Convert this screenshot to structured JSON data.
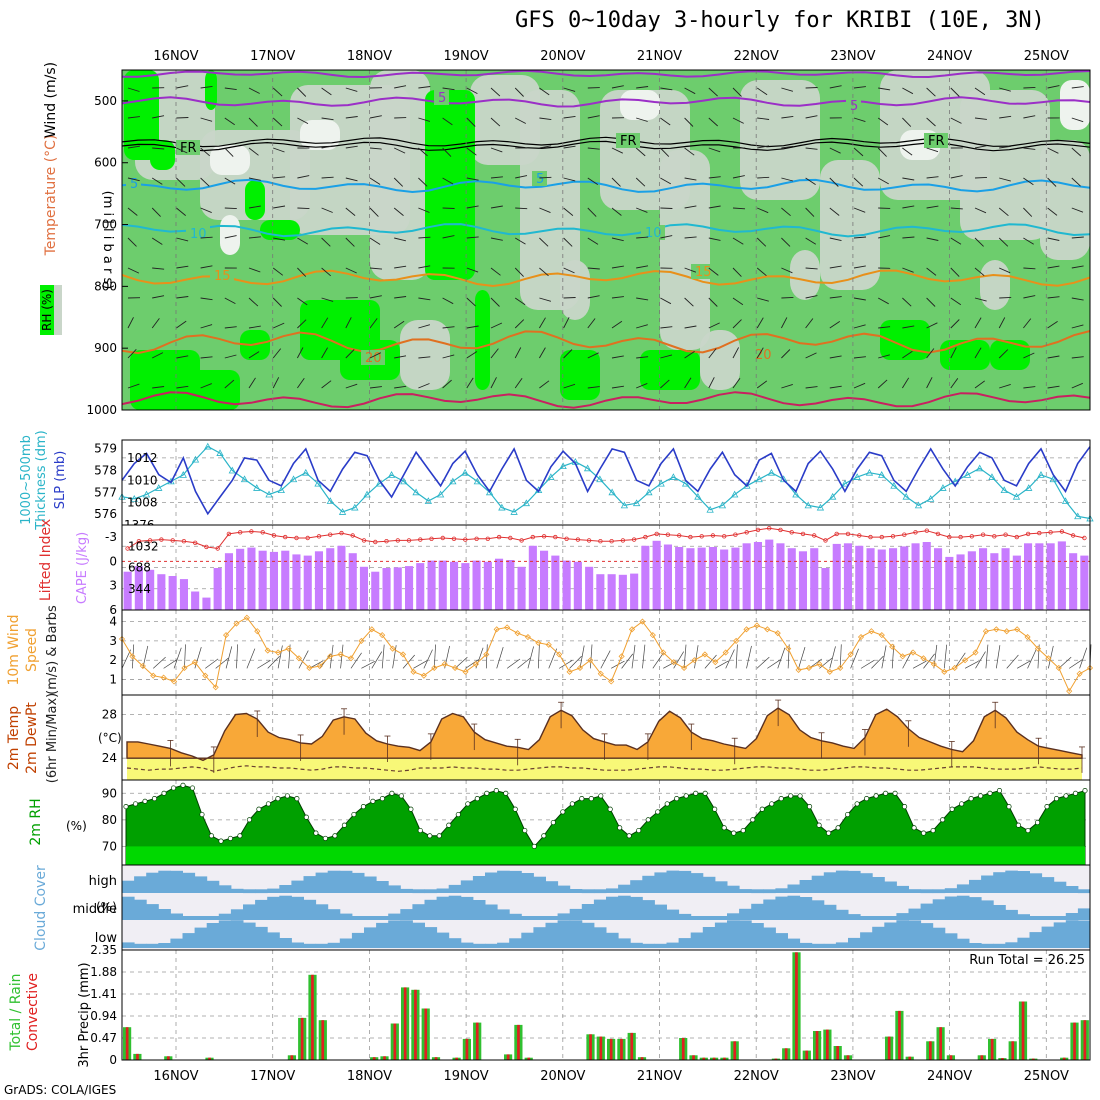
{
  "title": "GFS 0~10day 3-hourly for KRIBI (10E, 3N)",
  "credit": "GrADS: COLA/IGES",
  "dates": [
    "16NOV",
    "17NOV",
    "18NOV",
    "19NOV",
    "20NOV",
    "21NOV",
    "22NOV",
    "23NOV",
    "24NOV",
    "25NOV"
  ],
  "colors": {
    "rh_light": "#c9d6c9",
    "rh_green": "#6dcd6d",
    "rh_bright": "#00f000",
    "temp": "#9b2fc7",
    "freeze": "#000000",
    "cyan": "#1aa0e6",
    "orange": "#e8901a",
    "cape": "#c77cff",
    "li": "#e03030",
    "slp": "#2a3cc8",
    "thick": "#2ab4c8",
    "wind10": "#f0a030",
    "temp2m": "#f8a838",
    "dew": "#f8f878",
    "rh2m": "#00a000",
    "cloud": "#6aaad8",
    "precip_total": "#30c030",
    "precip_conv": "#e02020"
  },
  "chart_data": [
    {
      "type": "heatmap",
      "panel": "upper-air",
      "ylabel": "(millibars)",
      "yticks": [
        500,
        600,
        700,
        800,
        900,
        1000
      ],
      "ylim": [
        1000,
        450
      ],
      "legend_labels": {
        "rh": "RH (%)",
        "temp": "Temperature (°C)",
        "wind": "Wind (m/s)"
      },
      "contour_labels": [
        "5",
        "5",
        "FR",
        "FR",
        "FR",
        "5",
        "5",
        "10",
        "10",
        "15",
        "15",
        "20",
        "20"
      ]
    },
    {
      "type": "line",
      "panel": "slp-thickness",
      "ylabel_left": "1000~500mb Thickness (dm)",
      "ylabel_right": "SLP (mb)",
      "yticks_left": [
        "576",
        "577",
        "578",
        "579"
      ],
      "yticks_right": [
        "1008",
        "1010",
        "1012"
      ],
      "series": [
        {
          "values": [
            1010,
            1011.5,
            1012.4,
            1010.5,
            1009.8,
            1012,
            1009,
            1007,
            1008.5,
            1010,
            1012,
            1011.8,
            1010,
            1009.5,
            1011.5,
            1012.8,
            1010,
            1009,
            1011,
            1012.5,
            1012.2,
            1010,
            1008.5,
            1010.5,
            1012.5,
            1011,
            1009.5,
            1011.5,
            1012.6,
            1010.5,
            1009,
            1011,
            1012.8,
            1010,
            1009,
            1011.2,
            1012.6,
            1011.5,
            1009,
            1011,
            1012.8,
            1012.5,
            1010,
            1009.5,
            1011.5,
            1012.8,
            1010,
            1009,
            1011,
            1012.5,
            1010.5,
            1009.5,
            1011.8,
            1012.4,
            1010,
            1009,
            1011.5,
            1012.6,
            1011,
            1009,
            1011,
            1012.5,
            1012.2,
            1010,
            1009,
            1011,
            1012.8,
            1011,
            1009.5,
            1011.2,
            1012.5,
            1012,
            1010,
            1009.5,
            1011.5,
            1012.8,
            1010.5,
            1009,
            1011.5,
            1013
          ]
        },
        {
          "values": [
            576.8,
            576.7,
            576.9,
            577.2,
            577.5,
            577.8,
            578.5,
            579.1,
            578.8,
            578,
            577.6,
            577.2,
            576.9,
            577.1,
            577.6,
            577.9,
            577.4,
            576.6,
            576.1,
            576.3,
            576.9,
            577.4,
            577.8,
            577.5,
            577,
            576.6,
            576.9,
            577.5,
            577.9,
            577.5,
            577,
            576.3,
            576.1,
            576.5,
            577.1,
            577.7,
            578.2,
            578.4,
            578.1,
            577.6,
            577,
            576.4,
            576.5,
            577,
            577.4,
            577.7,
            577.4,
            576.8,
            576.2,
            576.4,
            576.9,
            577.3,
            577.6,
            577.9,
            577.6,
            576.9,
            576.4,
            576.3,
            576.8,
            577.4,
            577.7,
            577.9,
            577.8,
            577.3,
            576.8,
            576.4,
            576.7,
            577.2,
            577.5,
            577.8,
            578.1,
            577.7,
            577.1,
            576.8,
            577.2,
            577.8,
            577.6,
            576.6,
            575.9,
            575.8
          ]
        }
      ]
    },
    {
      "type": "bar",
      "panel": "cape-li",
      "ylabel_left": "Lifted Index",
      "ylabel_right": "CAPE (J/kg)",
      "yticks_left": [
        "-3",
        "0",
        "3",
        "6"
      ],
      "yticks_right": [
        "344",
        "688",
        "1032",
        "1376"
      ],
      "series": [
        {
          "values": [
            620,
            710,
            650,
            580,
            550,
            500,
            300,
            200,
            680,
            920,
            990,
            1010,
            960,
            940,
            960,
            900,
            880,
            950,
            1000,
            1040,
            920,
            700,
            620,
            680,
            690,
            710,
            760,
            800,
            800,
            780,
            760,
            800,
            780,
            830,
            810,
            700,
            1040,
            960,
            880,
            800,
            780,
            700,
            580,
            580,
            570,
            590,
            1040,
            1120,
            1060,
            1020,
            1000,
            1010,
            1020,
            980,
            1010,
            1080,
            1100,
            1140,
            1080,
            1000,
            950,
            1000,
            680,
            1070,
            1080,
            1040,
            1000,
            980,
            1000,
            1030,
            1080,
            1100,
            1000,
            860,
            900,
            950,
            1000,
            920,
            1000,
            880,
            1080,
            1080,
            1080,
            1110,
            920,
            880
          ]
        },
        {
          "values": [
            -1.6,
            -2.5,
            -2.6,
            -2.7,
            -2.6,
            -2.5,
            -2.3,
            -1.8,
            -1.6,
            -3.4,
            -3.6,
            -3.7,
            -3.6,
            -3.2,
            -3.0,
            -2.9,
            -2.9,
            -3.1,
            -3.3,
            -3.5,
            -3.2,
            -2.6,
            -2.4,
            -2.5,
            -2.6,
            -2.6,
            -2.7,
            -2.8,
            -2.9,
            -2.8,
            -2.7,
            -2.8,
            -2.8,
            -3.0,
            -2.9,
            -2.6,
            -3.0,
            -3.1,
            -3.0,
            -2.8,
            -2.7,
            -2.6,
            -2.5,
            -2.5,
            -2.6,
            -2.7,
            -3.0,
            -3.4,
            -3.3,
            -3.2,
            -3.0,
            -3.1,
            -3.2,
            -3.1,
            -3.3,
            -3.6,
            -3.9,
            -4.1,
            -3.9,
            -3.6,
            -3.4,
            -3.2,
            -2.6,
            -3.4,
            -3.4,
            -3.2,
            -3.0,
            -3.0,
            -3.1,
            -3.3,
            -3.6,
            -3.8,
            -3.4,
            -3.0,
            -3.0,
            -3.1,
            -3.3,
            -3.1,
            -3.3,
            -3.0,
            -3.4,
            -3.5,
            -3.6,
            -3.7,
            -3.2,
            -2.9
          ]
        }
      ]
    },
    {
      "type": "line",
      "panel": "wind10m",
      "ylabel": "10m Wind Speed (m/s) & Barbs",
      "yticks": [
        "1",
        "2",
        "3",
        "4"
      ],
      "series": [
        {
          "values": [
            3.1,
            2.2,
            1.7,
            1.2,
            1.1,
            0.9,
            1.6,
            1.9,
            1.2,
            0.6,
            3.3,
            3.9,
            4.2,
            3.5,
            2.5,
            2.4,
            2.6,
            2.1,
            1.6,
            1.7,
            2.2,
            2.3,
            2.1,
            3.0,
            3.6,
            3.3,
            2.6,
            2.3,
            1.4,
            1.2,
            1.6,
            1.8,
            1.6,
            1.4,
            1.8,
            2.3,
            3.6,
            3.7,
            3.4,
            3.2,
            2.9,
            2.8,
            2.3,
            1.4,
            1.6,
            2.0,
            1.3,
            0.9,
            2.2,
            3.6,
            4.0,
            3.3,
            2.4,
            1.9,
            1.6,
            2.0,
            2.3,
            1.9,
            2.4,
            3.0,
            3.6,
            3.8,
            3.6,
            3.4,
            2.6,
            1.5,
            1.6,
            1.8,
            1.4,
            1.6,
            2.3,
            3.2,
            3.5,
            3.3,
            2.7,
            2.2,
            2.4,
            2.1,
            1.8,
            1.4,
            1.6,
            2.0,
            2.4,
            3.5,
            3.6,
            3.5,
            3.6,
            3.2,
            2.6,
            2.1,
            1.6,
            0.4,
            1.3,
            1.6
          ]
        }
      ]
    },
    {
      "type": "area",
      "panel": "temp2m",
      "ylabel": "2m Temp 2m DewPt (6hr Min/Max) (°C)",
      "yticks": [
        "24",
        "28"
      ],
      "series": [
        {
          "values": [
            25.5,
            25.5,
            25.3,
            25.1,
            24.9,
            24.5,
            24.2,
            23.8,
            24.3,
            26.5,
            28.0,
            28.1,
            27.6,
            26.4,
            25.9,
            25.7,
            25.4,
            25.3,
            26.0,
            27.5,
            27.8,
            27.6,
            26.3,
            25.6,
            25.3,
            25.1,
            25.0,
            24.7,
            25.5,
            27.6,
            28.1,
            27.8,
            26.4,
            25.7,
            25.4,
            25.1,
            25.0,
            24.8,
            25.7,
            27.8,
            28.4,
            27.9,
            26.6,
            25.8,
            25.5,
            25.2,
            25.2,
            24.8,
            25.5,
            27.4,
            28.3,
            27.7,
            26.4,
            25.8,
            25.6,
            25.3,
            25.1,
            24.9,
            25.8,
            27.9,
            28.6,
            28.0,
            26.6,
            25.9,
            25.6,
            25.4,
            25.1,
            24.9,
            25.9,
            28.0,
            28.5,
            27.8,
            26.7,
            25.9,
            25.5,
            25.1,
            24.8,
            24.6,
            25.6,
            27.8,
            28.4,
            27.7,
            26.4,
            25.7,
            25.1,
            24.9,
            24.7,
            24.5,
            24.3
          ]
        },
        {
          "values": [
            23.1,
            23.0,
            22.9,
            23.0,
            23.0,
            23.1,
            23.2,
            23.1,
            22.8,
            23.0,
            23.2,
            23.3,
            23.2,
            23.2,
            23.1,
            23.1,
            23.0,
            22.9,
            23.0,
            23.2,
            23.2,
            23.1,
            23.1,
            23.0,
            22.9,
            22.8,
            22.9,
            23.1,
            23.1,
            23.1,
            23.2,
            23.1,
            23.1,
            23.0,
            23.0,
            22.9,
            22.9,
            23.0,
            23.1,
            23.2,
            23.2,
            23.1,
            23.1,
            23.0,
            22.9,
            22.9,
            22.9,
            23.0,
            23.1,
            23.2,
            23.2,
            23.1,
            23.0,
            23.0,
            22.9,
            22.9,
            23.0,
            23.1,
            23.2,
            23.2,
            23.1,
            23.1,
            23.0,
            22.9,
            22.9,
            23.0,
            23.1,
            23.2,
            23.2,
            23.1,
            23.1,
            23.0,
            22.9,
            22.9,
            23.0,
            23.1,
            23.2,
            23.2,
            23.2,
            23.1,
            23.0,
            23.0,
            23.0,
            23.1,
            23.2,
            23.1,
            23.0,
            23.0,
            23.1
          ]
        }
      ]
    },
    {
      "type": "area",
      "panel": "rh2m",
      "ylabel": "2m RH (%)",
      "yticks": [
        "70",
        "80",
        "90"
      ],
      "series": [
        {
          "values": [
            85,
            86,
            87,
            88,
            90,
            92,
            93,
            92,
            82,
            74,
            72,
            73,
            74,
            80,
            84,
            86,
            88,
            89,
            88,
            81,
            75,
            73,
            74,
            78,
            82,
            85,
            87,
            88,
            90,
            89,
            84,
            76,
            74,
            74,
            78,
            82,
            86,
            88,
            90,
            91,
            90,
            84,
            76,
            70,
            74,
            79,
            83,
            86,
            88,
            88,
            89,
            84,
            77,
            74,
            76,
            80,
            83,
            86,
            88,
            89,
            90,
            90,
            84,
            77,
            75,
            76,
            80,
            84,
            86,
            88,
            89,
            89,
            85,
            78,
            75,
            77,
            82,
            86,
            88,
            89,
            90,
            90,
            85,
            77,
            75,
            76,
            80,
            84,
            86,
            88,
            89,
            90,
            91,
            85,
            78,
            76,
            79,
            85,
            88,
            89,
            90,
            91
          ]
        }
      ]
    },
    {
      "type": "heatmap",
      "panel": "cloud-cover",
      "ylabel": "Cloud Cover (%)",
      "yticks": [
        "high",
        "middle",
        "low"
      ]
    },
    {
      "type": "bar",
      "panel": "precip",
      "ylabel_left": "Total / Rain Convective",
      "ylabel_right": "3hr Precip (mm)",
      "yticks": [
        "0",
        "0.47",
        "0.94",
        "1.41",
        "1.88",
        "2.35"
      ],
      "ylim": [
        0,
        2.35
      ],
      "annotation": "Run Total = 26.25",
      "series": [
        {
          "values": [
            0.7,
            0.13,
            0,
            0,
            0.08,
            0,
            0,
            0,
            0.05,
            0,
            0,
            0,
            0,
            0,
            0,
            0,
            0.1,
            0.9,
            1.82,
            0.85,
            0,
            0,
            0,
            0,
            0.06,
            0.08,
            0.78,
            1.55,
            1.5,
            1.1,
            0.06,
            0,
            0.05,
            0.45,
            0.8,
            0,
            0,
            0.12,
            0.75,
            0.05,
            0,
            0,
            0,
            0,
            0,
            0.55,
            0.5,
            0.45,
            0.45,
            0.58,
            0.06,
            0,
            0,
            0,
            0.47,
            0.1,
            0.05,
            0.05,
            0.05,
            0.4,
            0,
            0,
            0,
            0.03,
            0.25,
            2.3,
            0.2,
            0.62,
            0.65,
            0.3,
            0.1,
            0,
            0,
            0,
            0.5,
            1.05,
            0.07,
            0,
            0.4,
            0.7,
            0.1,
            0,
            0,
            0.1,
            0.45,
            0.04,
            0.4,
            1.25,
            0.03,
            0,
            0,
            0.05,
            0.8,
            0.85
          ]
        }
      ]
    }
  ]
}
